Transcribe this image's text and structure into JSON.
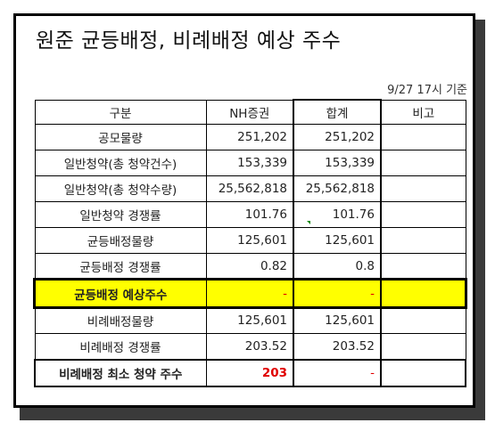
{
  "title": "원준 균등배정, 비례배정 예상 주수",
  "basis": "9/27 17시 기준",
  "table": {
    "headers": [
      "구분",
      "NH증권",
      "합계",
      "비고"
    ],
    "rows": [
      {
        "label": "공모물량",
        "nh": "251,202",
        "total": "251,202",
        "note": ""
      },
      {
        "label": "일반청약(총 청약건수)",
        "nh": "153,339",
        "total": "153,339",
        "note": ""
      },
      {
        "label": "일반청약(총 청약수량)",
        "nh": "25,562,818",
        "total": "25,562,818",
        "note": ""
      },
      {
        "label": "일반청약 경쟁률",
        "nh": "101.76",
        "total": "101.76",
        "note": ""
      },
      {
        "label": "균등배정물량",
        "nh": "125,601",
        "total": "125,601",
        "note": ""
      },
      {
        "label": "균등배정 경쟁률",
        "nh": "0.82",
        "total": "0.8",
        "note": ""
      },
      {
        "label": "균등배정 예상주수",
        "nh": "-",
        "total": "-",
        "note": ""
      },
      {
        "label": "비례배정물량",
        "nh": "125,601",
        "total": "125,601",
        "note": ""
      },
      {
        "label": "비례배정 경쟁률",
        "nh": "203.52",
        "total": "203.52",
        "note": ""
      },
      {
        "label": "비례배정 최소 청약 주수",
        "nh": "203",
        "total": "-",
        "note": ""
      }
    ]
  },
  "colors": {
    "highlight": "#ffff00",
    "emphasis_red": "#e00000",
    "border": "#000000"
  }
}
